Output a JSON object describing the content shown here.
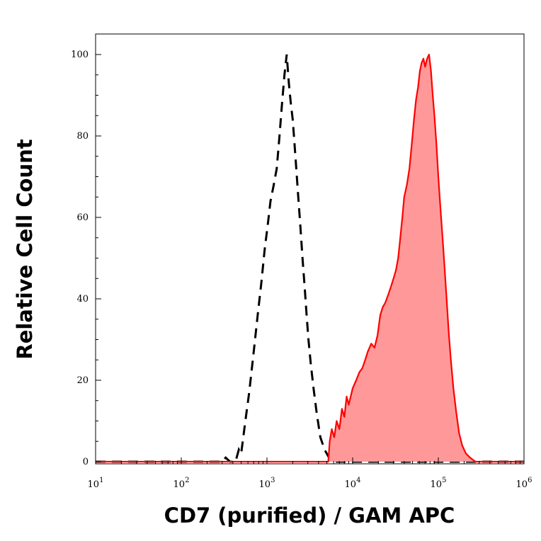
{
  "chart_data": {
    "type": "area",
    "title": "",
    "xlabel": "CD7 (purified) / GAM APC",
    "ylabel": "Relative Cell Count",
    "x_scale": "log",
    "xlim": [
      10,
      1000000
    ],
    "ylim": [
      0,
      100
    ],
    "grid": false,
    "legend": "none",
    "x_ticks": [
      {
        "base": "10",
        "exp": "1",
        "value": 10
      },
      {
        "base": "10",
        "exp": "2",
        "value": 100
      },
      {
        "base": "10",
        "exp": "3",
        "value": 1000
      },
      {
        "base": "10",
        "exp": "4",
        "value": 10000
      },
      {
        "base": "10",
        "exp": "5",
        "value": 100000
      },
      {
        "base": "10",
        "exp": "6",
        "value": 1000000
      }
    ],
    "y_ticks": [
      {
        "label": "0",
        "value": 0
      },
      {
        "label": "20",
        "value": 20
      },
      {
        "label": "40",
        "value": 40
      },
      {
        "label": "60",
        "value": 60
      },
      {
        "label": "80",
        "value": 80
      },
      {
        "label": "100",
        "value": 100
      }
    ],
    "series": [
      {
        "style": "dashed-line",
        "color": "#000000",
        "points": [
          [
            10,
            0
          ],
          [
            300,
            0
          ],
          [
            330,
            1
          ],
          [
            370,
            0
          ],
          [
            430,
            0
          ],
          [
            470,
            3
          ],
          [
            500,
            2
          ],
          [
            560,
            10
          ],
          [
            620,
            17
          ],
          [
            700,
            27
          ],
          [
            780,
            36
          ],
          [
            860,
            44
          ],
          [
            940,
            52
          ],
          [
            1020,
            58
          ],
          [
            1100,
            64
          ],
          [
            1200,
            68
          ],
          [
            1300,
            72
          ],
          [
            1400,
            80
          ],
          [
            1500,
            88
          ],
          [
            1600,
            95
          ],
          [
            1700,
            100
          ],
          [
            1800,
            93
          ],
          [
            1900,
            88
          ],
          [
            2000,
            84
          ],
          [
            2150,
            75
          ],
          [
            2300,
            66
          ],
          [
            2450,
            58
          ],
          [
            2600,
            50
          ],
          [
            2750,
            43
          ],
          [
            2900,
            36
          ],
          [
            3050,
            30
          ],
          [
            3250,
            24
          ],
          [
            3500,
            18
          ],
          [
            3800,
            12
          ],
          [
            4200,
            6
          ],
          [
            4700,
            3
          ],
          [
            5300,
            1
          ],
          [
            6000,
            0
          ],
          [
            7500,
            0
          ],
          [
            1000000,
            0
          ]
        ]
      },
      {
        "style": "filled",
        "color": "#ff0000",
        "fill": "#ff9999",
        "points": [
          [
            10,
            0
          ],
          [
            5200,
            0
          ],
          [
            5400,
            5
          ],
          [
            5700,
            8
          ],
          [
            6100,
            6
          ],
          [
            6500,
            10
          ],
          [
            7000,
            8
          ],
          [
            7500,
            13
          ],
          [
            8000,
            11
          ],
          [
            8500,
            16
          ],
          [
            9000,
            14
          ],
          [
            10000,
            18
          ],
          [
            11000,
            20
          ],
          [
            12000,
            22
          ],
          [
            13000,
            23
          ],
          [
            14000,
            25
          ],
          [
            15000,
            27
          ],
          [
            16500,
            29
          ],
          [
            18000,
            28
          ],
          [
            19500,
            31
          ],
          [
            21000,
            36
          ],
          [
            22500,
            38
          ],
          [
            24000,
            39
          ],
          [
            26000,
            41
          ],
          [
            28000,
            43
          ],
          [
            30000,
            45
          ],
          [
            32000,
            47
          ],
          [
            34000,
            50
          ],
          [
            36000,
            55
          ],
          [
            38000,
            60
          ],
          [
            40000,
            65
          ],
          [
            43000,
            68
          ],
          [
            46000,
            72
          ],
          [
            49000,
            78
          ],
          [
            52000,
            84
          ],
          [
            55000,
            89
          ],
          [
            58000,
            92
          ],
          [
            61000,
            96
          ],
          [
            64000,
            98
          ],
          [
            67000,
            99
          ],
          [
            70000,
            97
          ],
          [
            74000,
            99
          ],
          [
            78000,
            100
          ],
          [
            82000,
            96
          ],
          [
            86000,
            90
          ],
          [
            90000,
            85
          ],
          [
            95000,
            78
          ],
          [
            100000,
            70
          ],
          [
            106000,
            62
          ],
          [
            112000,
            55
          ],
          [
            118000,
            48
          ],
          [
            125000,
            40
          ],
          [
            132000,
            32
          ],
          [
            140000,
            25
          ],
          [
            150000,
            18
          ],
          [
            162000,
            12
          ],
          [
            175000,
            7
          ],
          [
            190000,
            4
          ],
          [
            210000,
            2
          ],
          [
            235000,
            1
          ],
          [
            270000,
            0
          ],
          [
            1000000,
            0
          ]
        ]
      }
    ]
  }
}
